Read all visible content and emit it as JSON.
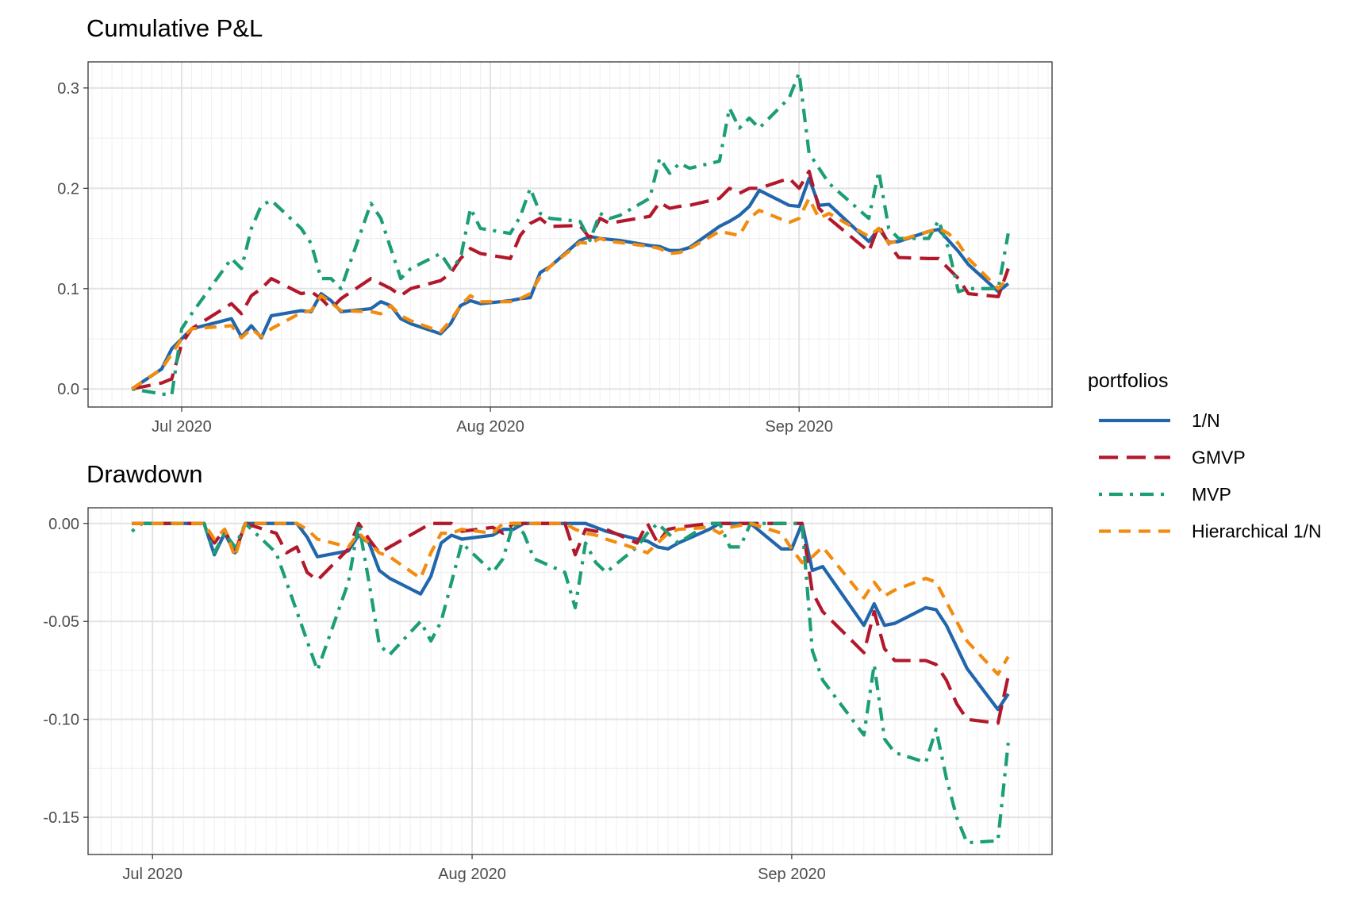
{
  "chart_data": [
    {
      "type": "line",
      "title": "Cumulative P&L",
      "legend_title": "portfolios",
      "grid": true,
      "legend": "right",
      "x": [
        178,
        181,
        182,
        183,
        184,
        188,
        189,
        190,
        191,
        192,
        195,
        196,
        197,
        198,
        199,
        202,
        203,
        204,
        205,
        206,
        209,
        210,
        211,
        212,
        213,
        216,
        217,
        218,
        219,
        220,
        223,
        224,
        225,
        226,
        227,
        230,
        231,
        232,
        233,
        234,
        237,
        238,
        239,
        240,
        241,
        244,
        245,
        246,
        247,
        248,
        252,
        253,
        254,
        255,
        258,
        259,
        260,
        261,
        262,
        265,
        266
      ],
      "xlim": [
        173.6,
        270.4
      ],
      "xticks": [
        {
          "value": 183,
          "label": "Jul 2020"
        },
        {
          "value": 214,
          "label": "Aug 2020"
        },
        {
          "value": 245,
          "label": "Sep 2020"
        }
      ],
      "ylim": [
        -0.018,
        0.326
      ],
      "yticks": [
        {
          "value": 0,
          "label": "0.0"
        },
        0.1,
        0.2,
        0.3
      ],
      "series": [
        {
          "name": "1/N",
          "color": "#2166AC",
          "dash": "solid",
          "values": [
            0,
            0.02,
            0.04,
            0.05,
            0.06,
            0.07,
            0.052,
            0.063,
            0.051,
            0.073,
            0.078,
            0.077,
            0.095,
            0.088,
            0.077,
            0.08,
            0.087,
            0.083,
            0.07,
            0.065,
            0.055,
            0.065,
            0.083,
            0.088,
            0.085,
            0.088,
            0.09,
            0.091,
            0.116,
            0.122,
            0.148,
            0.152,
            0.15,
            0.149,
            0.148,
            0.143,
            0.142,
            0.138,
            0.138,
            0.141,
            0.162,
            0.167,
            0.173,
            0.182,
            0.198,
            0.183,
            0.182,
            0.21,
            0.183,
            0.184,
            0.147,
            0.16,
            0.146,
            0.147,
            0.157,
            0.159,
            0.148,
            0.137,
            0.124,
            0.097,
            0.105
          ]
        },
        {
          "name": "GMVP",
          "color": "#B2182B",
          "dash": "longdash",
          "values": [
            0,
            0.006,
            0.01,
            0.045,
            0.06,
            0.085,
            0.075,
            0.093,
            0.1,
            0.11,
            0.095,
            0.097,
            0.09,
            0.08,
            0.09,
            0.11,
            0.105,
            0.1,
            0.093,
            0.1,
            0.108,
            0.115,
            0.13,
            0.14,
            0.135,
            0.13,
            0.153,
            0.165,
            0.17,
            0.162,
            0.163,
            0.15,
            0.17,
            0.165,
            0.167,
            0.172,
            0.186,
            0.18,
            0.182,
            0.183,
            0.19,
            0.2,
            0.195,
            0.2,
            0.2,
            0.21,
            0.2,
            0.217,
            0.18,
            0.17,
            0.137,
            0.163,
            0.145,
            0.131,
            0.13,
            0.13,
            0.12,
            0.11,
            0.095,
            0.092,
            0.12
          ]
        },
        {
          "name": "MVP",
          "color": "#1B9E77",
          "dash": "dotdash",
          "values": [
            0,
            -0.005,
            -0.006,
            0.06,
            0.075,
            0.13,
            0.12,
            0.16,
            0.183,
            0.188,
            0.16,
            0.145,
            0.11,
            0.11,
            0.1,
            0.185,
            0.17,
            0.14,
            0.11,
            0.12,
            0.135,
            0.12,
            0.13,
            0.18,
            0.16,
            0.155,
            0.172,
            0.2,
            0.175,
            0.17,
            0.167,
            0.148,
            0.175,
            0.17,
            0.173,
            0.19,
            0.23,
            0.215,
            0.225,
            0.22,
            0.227,
            0.28,
            0.26,
            0.27,
            0.26,
            0.29,
            0.315,
            0.235,
            0.22,
            0.205,
            0.17,
            0.217,
            0.16,
            0.15,
            0.15,
            0.168,
            0.14,
            0.097,
            0.1,
            0.1,
            0.155
          ]
        },
        {
          "name": "Hierarchical 1/N",
          "color": "#F28C0F",
          "dash": "dashed",
          "values": [
            0,
            0.02,
            0.035,
            0.05,
            0.06,
            0.063,
            0.051,
            0.06,
            0.052,
            0.06,
            0.076,
            0.078,
            0.093,
            0.086,
            0.078,
            0.077,
            0.075,
            0.083,
            0.073,
            0.068,
            0.057,
            0.068,
            0.083,
            0.093,
            0.087,
            0.087,
            0.09,
            0.095,
            0.112,
            0.122,
            0.146,
            0.145,
            0.15,
            0.147,
            0.146,
            0.142,
            0.14,
            0.135,
            0.136,
            0.14,
            0.157,
            0.155,
            0.153,
            0.17,
            0.178,
            0.166,
            0.17,
            0.19,
            0.17,
            0.175,
            0.152,
            0.16,
            0.145,
            0.148,
            0.157,
            0.16,
            0.155,
            0.145,
            0.13,
            0.1,
            0.11
          ]
        }
      ]
    },
    {
      "type": "line",
      "title": "Drawdown",
      "grid": true,
      "x": [
        181,
        182,
        183,
        184,
        188,
        189,
        190,
        191,
        192,
        195,
        196,
        197,
        198,
        199,
        202,
        203,
        204,
        205,
        206,
        209,
        210,
        211,
        212,
        213,
        216,
        217,
        218,
        219,
        220,
        223,
        224,
        225,
        226,
        227,
        230,
        231,
        232,
        233,
        234,
        237,
        238,
        239,
        240,
        241,
        244,
        245,
        246,
        247,
        248,
        252,
        253,
        254,
        255,
        258,
        259,
        260,
        261,
        262,
        265,
        266
      ],
      "xlim": [
        176.75,
        270.25
      ],
      "xticks": [
        {
          "value": 183,
          "label": "Jul 2020"
        },
        {
          "value": 214,
          "label": "Aug 2020"
        },
        {
          "value": 245,
          "label": "Sep 2020"
        }
      ],
      "ylim": [
        -0.169,
        0.008
      ],
      "yticks": [
        -0.15,
        {
          "value": -0.1,
          "label": "-0.10"
        },
        -0.05,
        {
          "value": 0,
          "label": "0.00"
        }
      ],
      "series": [
        {
          "name": "1/N",
          "color": "#2166AC",
          "dash": "solid",
          "values": [
            0,
            0,
            0,
            0,
            0,
            -0.016,
            -0.005,
            -0.015,
            0,
            0,
            0,
            0,
            -0.007,
            -0.017,
            -0.014,
            -0.006,
            -0.01,
            -0.024,
            -0.028,
            -0.036,
            -0.027,
            -0.01,
            -0.006,
            -0.008,
            -0.006,
            -0.003,
            -0.003,
            0,
            0,
            0,
            0,
            0,
            -0.002,
            -0.004,
            -0.008,
            -0.009,
            -0.012,
            -0.013,
            -0.01,
            -0.003,
            0,
            0,
            0,
            0,
            -0.013,
            -0.013,
            0,
            -0.024,
            -0.022,
            -0.052,
            -0.041,
            -0.052,
            -0.051,
            -0.043,
            -0.044,
            -0.052,
            -0.063,
            -0.074,
            -0.095,
            -0.087
          ]
        },
        {
          "name": "GMVP",
          "color": "#B2182B",
          "dash": "longdash",
          "values": [
            0,
            0,
            0,
            0,
            0,
            -0.01,
            -0.003,
            -0.015,
            0,
            -0.005,
            -0.015,
            -0.012,
            -0.025,
            -0.029,
            -0.013,
            0,
            -0.008,
            -0.015,
            -0.012,
            -0.003,
            0,
            0,
            0,
            -0.004,
            -0.002,
            -0.005,
            0,
            0,
            0,
            0,
            -0.016,
            -0.003,
            -0.004,
            -0.003,
            -0.01,
            0,
            -0.01,
            -0.003,
            -0.002,
            0,
            0,
            0,
            0,
            0,
            0,
            0,
            0,
            -0.035,
            -0.045,
            -0.066,
            -0.045,
            -0.064,
            -0.07,
            -0.07,
            -0.072,
            -0.08,
            -0.092,
            -0.1,
            -0.102,
            -0.078
          ]
        },
        {
          "name": "MVP",
          "color": "#1B9E77",
          "dash": "dotdash",
          "values": [
            -0.004,
            0,
            0,
            0,
            0,
            -0.015,
            -0.005,
            -0.012,
            0,
            -0.015,
            -0.03,
            -0.045,
            -0.06,
            -0.075,
            -0.03,
            0,
            -0.03,
            -0.062,
            -0.067,
            -0.05,
            -0.06,
            -0.05,
            -0.03,
            -0.01,
            -0.025,
            -0.018,
            0,
            -0.005,
            -0.018,
            -0.025,
            -0.043,
            -0.01,
            -0.02,
            -0.025,
            -0.012,
            -0.005,
            0,
            -0.005,
            -0.01,
            0,
            0,
            -0.012,
            -0.012,
            0,
            0,
            0,
            0,
            -0.065,
            -0.08,
            -0.108,
            -0.072,
            -0.11,
            -0.117,
            -0.122,
            -0.105,
            -0.13,
            -0.15,
            -0.163,
            -0.162,
            -0.112
          ]
        },
        {
          "name": "Hierarchical 1/N",
          "color": "#F28C0F",
          "dash": "dashed",
          "values": [
            0,
            0,
            0,
            0,
            0,
            -0.008,
            -0.003,
            -0.017,
            0,
            0,
            0,
            0,
            -0.003,
            -0.008,
            -0.012,
            -0.005,
            -0.01,
            -0.015,
            -0.017,
            -0.028,
            -0.015,
            -0.005,
            -0.005,
            -0.003,
            -0.005,
            0,
            0,
            0,
            0,
            0,
            -0.003,
            -0.005,
            -0.006,
            -0.008,
            -0.013,
            -0.015,
            -0.01,
            -0.005,
            -0.003,
            -0.002,
            -0.005,
            -0.002,
            -0.001,
            0,
            -0.005,
            -0.013,
            -0.02,
            -0.017,
            -0.012,
            -0.038,
            -0.03,
            -0.037,
            -0.034,
            -0.028,
            -0.03,
            -0.04,
            -0.05,
            -0.06,
            -0.077,
            -0.068
          ]
        }
      ]
    }
  ]
}
